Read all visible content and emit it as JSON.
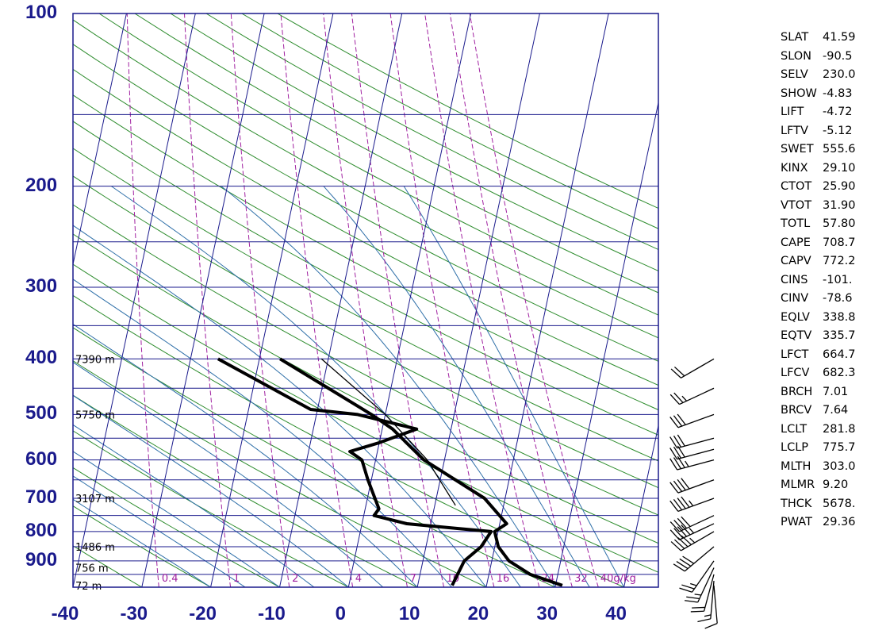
{
  "chart_data": {
    "type": "skew-t",
    "pressure_levels": [
      {
        "p": 100,
        "label": "100"
      },
      {
        "p": 200,
        "label": "200"
      },
      {
        "p": 300,
        "label": "300"
      },
      {
        "p": 400,
        "label": "400"
      },
      {
        "p": 500,
        "label": "500"
      },
      {
        "p": 600,
        "label": "600"
      },
      {
        "p": 700,
        "label": "700"
      },
      {
        "p": 800,
        "label": "800"
      },
      {
        "p": 900,
        "label": "900"
      }
    ],
    "temperature_ticks": [
      "-40",
      "-30",
      "-20",
      "-10",
      "0",
      "10",
      "20",
      "30",
      "40"
    ],
    "height_labels": [
      {
        "p": 400,
        "label": "7390 m"
      },
      {
        "p": 500,
        "label": "5750 m"
      },
      {
        "p": 700,
        "label": "3107 m"
      },
      {
        "p": 850,
        "label": "1486 m"
      },
      {
        "p": 925,
        "label": "756 m"
      },
      {
        "p": 993,
        "label": "72 m"
      }
    ],
    "mixing_ratio_labels": [
      "0.4",
      "1",
      "2",
      "4",
      "7",
      "10",
      "16",
      "24",
      "32",
      "40g/kg"
    ],
    "temperature_profile": [
      {
        "p": 993,
        "t": 31.0
      },
      {
        "p": 950,
        "t": 26.0
      },
      {
        "p": 900,
        "t": 22.5
      },
      {
        "p": 850,
        "t": 20.5
      },
      {
        "p": 800,
        "t": 19.5
      },
      {
        "p": 775,
        "t": 21.0
      },
      {
        "p": 700,
        "t": 17.0
      },
      {
        "p": 600,
        "t": 7.0
      },
      {
        "p": 530,
        "t": 1.5
      },
      {
        "p": 500,
        "t": -2.0
      },
      {
        "p": 400,
        "t": -17.0
      }
    ],
    "dewpoint_profile": [
      {
        "p": 993,
        "t": 15.0
      },
      {
        "p": 900,
        "t": 16.0
      },
      {
        "p": 850,
        "t": 18.0
      },
      {
        "p": 800,
        "t": 19.0
      },
      {
        "p": 790,
        "t": 14.0
      },
      {
        "p": 775,
        "t": 6.5
      },
      {
        "p": 750,
        "t": 1.5
      },
      {
        "p": 730,
        "t": 2.0
      },
      {
        "p": 650,
        "t": -0.5
      },
      {
        "p": 600,
        "t": -2.0
      },
      {
        "p": 580,
        "t": -4.0
      },
      {
        "p": 560,
        "t": 0.0
      },
      {
        "p": 530,
        "t": 5.0
      },
      {
        "p": 500,
        "t": -4.0
      },
      {
        "p": 490,
        "t": -11.0
      },
      {
        "p": 400,
        "t": -26.0
      }
    ],
    "parcel_profile": [
      {
        "p": 720,
        "t": 13.0
      },
      {
        "p": 600,
        "t": 7.5
      },
      {
        "p": 500,
        "t": 0.0
      },
      {
        "p": 400,
        "t": -11.0
      }
    ],
    "wind_barbs": [
      {
        "p": 993,
        "dir": 175,
        "spd": 10
      },
      {
        "p": 975,
        "dir": 185,
        "spd": 15
      },
      {
        "p": 950,
        "dir": 195,
        "spd": 20
      },
      {
        "p": 925,
        "dir": 205,
        "spd": 25
      },
      {
        "p": 900,
        "dir": 215,
        "spd": 25
      },
      {
        "p": 850,
        "dir": 230,
        "spd": 40
      },
      {
        "p": 800,
        "dir": 240,
        "spd": 45
      },
      {
        "p": 775,
        "dir": 245,
        "spd": 45
      },
      {
        "p": 750,
        "dir": 245,
        "spd": 40
      },
      {
        "p": 700,
        "dir": 250,
        "spd": 45
      },
      {
        "p": 650,
        "dir": 250,
        "spd": 40
      },
      {
        "p": 600,
        "dir": 255,
        "spd": 35
      },
      {
        "p": 575,
        "dir": 255,
        "spd": 30
      },
      {
        "p": 550,
        "dir": 255,
        "spd": 30
      },
      {
        "p": 500,
        "dir": 250,
        "spd": 30
      },
      {
        "p": 450,
        "dir": 245,
        "spd": 25
      },
      {
        "p": 400,
        "dir": 240,
        "spd": 20
      }
    ]
  },
  "indices": [
    {
      "name": "SLAT",
      "value": "41.59"
    },
    {
      "name": "SLON",
      "value": "-90.5"
    },
    {
      "name": "SELV",
      "value": "230.0"
    },
    {
      "name": "SHOW",
      "value": "-4.83"
    },
    {
      "name": "LIFT",
      "value": "-4.72"
    },
    {
      "name": "LFTV",
      "value": "-5.12"
    },
    {
      "name": "SWET",
      "value": "555.6"
    },
    {
      "name": "KINX",
      "value": "29.10"
    },
    {
      "name": "CTOT",
      "value": "25.90"
    },
    {
      "name": "VTOT",
      "value": "31.90"
    },
    {
      "name": "TOTL",
      "value": "57.80"
    },
    {
      "name": "CAPE",
      "value": "708.7"
    },
    {
      "name": "CAPV",
      "value": "772.2"
    },
    {
      "name": "CINS",
      "value": "-101."
    },
    {
      "name": "CINV",
      "value": "-78.6"
    },
    {
      "name": "EQLV",
      "value": "338.8"
    },
    {
      "name": "EQTV",
      "value": "335.7"
    },
    {
      "name": "LFCT",
      "value": "664.7"
    },
    {
      "name": "LFCV",
      "value": "682.3"
    },
    {
      "name": "BRCH",
      "value": "7.01"
    },
    {
      "name": "BRCV",
      "value": "7.64"
    },
    {
      "name": "LCLT",
      "value": "281.8"
    },
    {
      "name": "LCLP",
      "value": "775.7"
    },
    {
      "name": "MLTH",
      "value": "303.0"
    },
    {
      "name": "MLMR",
      "value": "9.20"
    },
    {
      "name": "THCK",
      "value": "5678."
    },
    {
      "name": "PWAT",
      "value": "29.36"
    }
  ],
  "colors": {
    "frame": "#1a1a8c",
    "isobar": "#1a1a8c",
    "isotherm": "#1a1a8c",
    "dry_adiabat": "#2d8c2d",
    "moist_adiabat": "#2e6fa8",
    "mixing_ratio": "#a020a0",
    "profile": "#000000"
  }
}
